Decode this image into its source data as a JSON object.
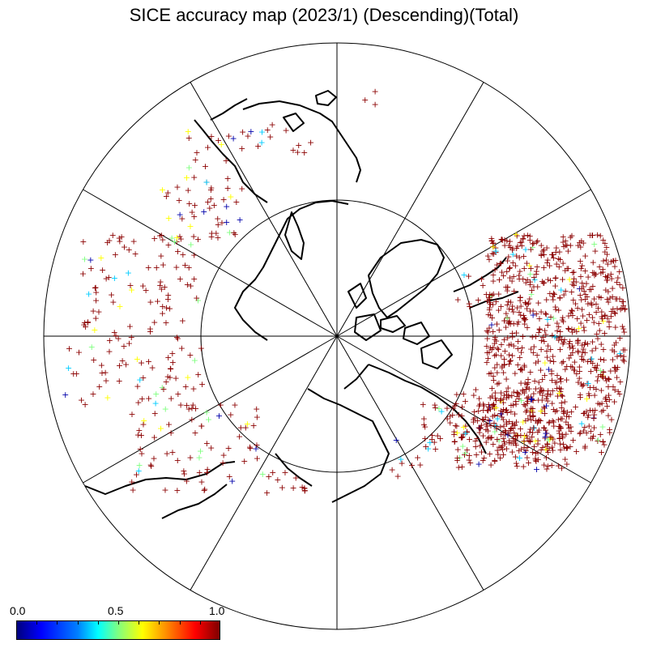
{
  "title": "SICE accuracy map (2023/1) (Descending)(Total)",
  "colorbar": {
    "min_label": "0.0",
    "mid_label": "0.5",
    "max_label": "1.0",
    "stops": [
      "#00007f",
      "#0000ff",
      "#0080ff",
      "#00ffff",
      "#80ff80",
      "#ffff00",
      "#ff8000",
      "#ff0000",
      "#7f0000"
    ]
  },
  "map": {
    "projection": "polar stereographic, north pole centered",
    "meridian_lines": 12,
    "inner_circle": true,
    "marker": "+",
    "dominant_color": "#8b0000",
    "other_colors": [
      "#0000aa",
      "#00ccff",
      "#ffff00",
      "#80ff80"
    ]
  }
}
